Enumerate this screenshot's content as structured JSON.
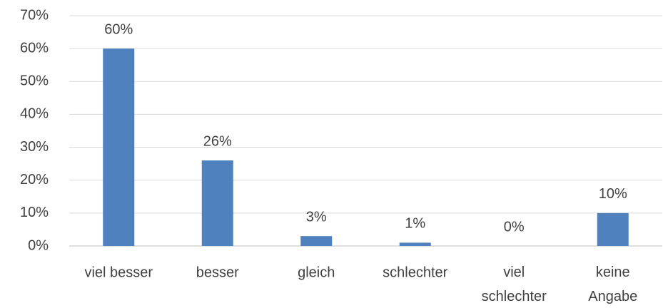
{
  "chart_data": {
    "type": "bar",
    "categories": [
      "viel besser",
      "besser",
      "gleich",
      "schlechter",
      "viel schlechter",
      "keine Angabe"
    ],
    "values": [
      60,
      26,
      3,
      1,
      0,
      10
    ],
    "value_labels": [
      "60%",
      "26%",
      "3%",
      "1%",
      "0%",
      "10%"
    ],
    "color": "#4e81bd",
    "ylim": [
      0,
      70
    ],
    "yticks": [
      {
        "value": 0,
        "label": "0%"
      },
      {
        "value": 10,
        "label": "10%"
      },
      {
        "value": 20,
        "label": "20%"
      },
      {
        "value": 30,
        "label": "30%"
      },
      {
        "value": 40,
        "label": "40%"
      },
      {
        "value": 50,
        "label": "50%"
      },
      {
        "value": 60,
        "label": "60%"
      },
      {
        "value": 70,
        "label": "70%"
      }
    ],
    "grid": true
  }
}
